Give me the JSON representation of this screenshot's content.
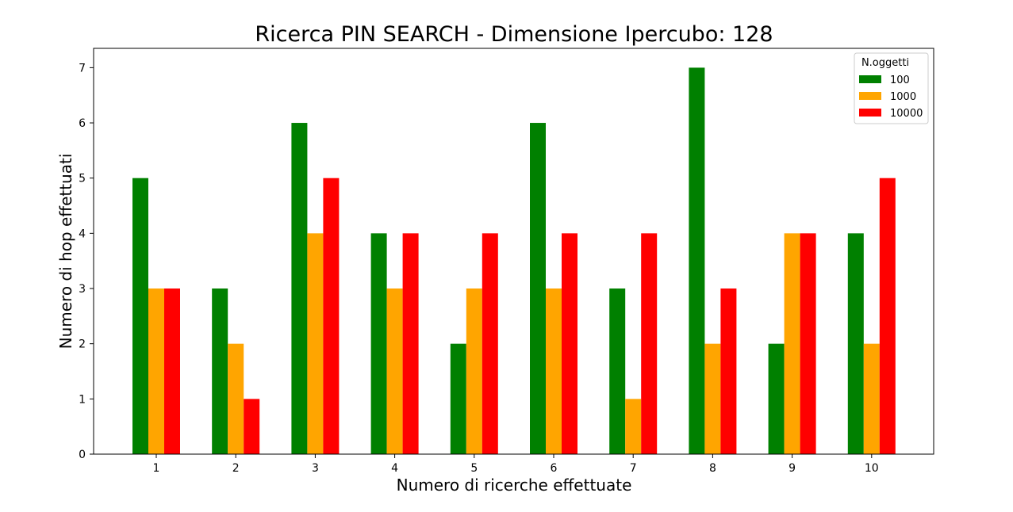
{
  "chart_data": {
    "type": "bar",
    "title": "Ricerca PIN SEARCH - Dimensione Ipercubo: 128",
    "xlabel": "Numero di ricerche effettuate",
    "ylabel": "Numero di hop effettuati",
    "categories": [
      "1",
      "2",
      "3",
      "4",
      "5",
      "6",
      "7",
      "8",
      "9",
      "10"
    ],
    "yticks": [
      "0",
      "1",
      "2",
      "3",
      "4",
      "5",
      "6",
      "7"
    ],
    "ylim": [
      0,
      7.35
    ],
    "grid": false,
    "legend": {
      "title": "N.oggetti",
      "placement": "top-right"
    },
    "series": [
      {
        "name": "100",
        "color": "#008000",
        "values": [
          5,
          3,
          6,
          4,
          2,
          6,
          3,
          7,
          2,
          4
        ]
      },
      {
        "name": "1000",
        "color": "#ffa500",
        "values": [
          3,
          2,
          4,
          3,
          3,
          3,
          1,
          2,
          4,
          2
        ]
      },
      {
        "name": "10000",
        "color": "#ff0000",
        "values": [
          3,
          1,
          5,
          4,
          4,
          4,
          4,
          3,
          4,
          5
        ]
      }
    ]
  }
}
